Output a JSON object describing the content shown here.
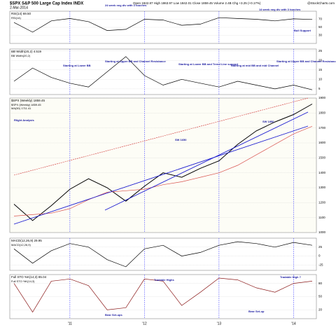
{
  "header": {
    "title": "$SPX S&P 500 Large Cap Index INDX",
    "date": "2-Mar-2014",
    "quote": "Open 1842.87 High 1863.97 Low 1842.01 Close 1859.45 Volume 2.4B Chg +3.25 (+0.17%)",
    "source": "@StockCharts.com"
  },
  "categories": [
    null,
    null,
    null,
    "'11",
    null,
    null,
    null,
    "'12",
    null,
    null,
    null,
    "'13",
    null,
    null,
    null,
    "'14",
    null
  ],
  "annotations": [
    "24 week neg div with 3 touches",
    "14 week neg div with 3 touches",
    "Bull Support",
    "Starting at Lower BB",
    "Starting at Upper BB and Channel Resistance",
    "Starting at Lower BB and Trend Line support",
    "Starting at mid BB and mid Channel",
    "Starting at Upper BB and Channel Resistance",
    "Rlight Analysis",
    "SW 1650",
    "SW 1850",
    "Tradable Highs",
    "Tradable High ?",
    "Bear Set-ups",
    "Bear Set-up"
  ],
  "chart_data": [
    {
      "type": "line",
      "title": "RSI(14) 69.50",
      "ylim": [
        10,
        90
      ],
      "yticks": [
        30,
        50,
        70
      ],
      "grid": true,
      "series": [
        {
          "name": "RSI(14)",
          "color": "#000000",
          "values": [
            62,
            38,
            66,
            72,
            64,
            42,
            45,
            70,
            68,
            55,
            58,
            74,
            72,
            70,
            66,
            71,
            69.5
          ]
        }
      ]
    },
    {
      "type": "line",
      "title": "BB Width(20,2) 4.519",
      "ylim": [
        2,
        26
      ],
      "yticks": [
        5,
        10,
        15,
        20,
        25
      ],
      "grid": true,
      "series": [
        {
          "name": "BB Width(20,2)",
          "color": "#000000",
          "values": [
            9,
            16,
            11,
            8,
            6,
            14,
            22,
            12,
            7,
            10,
            8,
            6,
            9,
            7,
            5,
            7,
            4.5
          ]
        }
      ]
    },
    {
      "type": "line",
      "title": "$SPX (Weekly) 1859.45",
      "ylim": [
        1000,
        1900
      ],
      "yticks": [
        1000,
        1100,
        1200,
        1300,
        1400,
        1500,
        1600,
        1700,
        1800,
        1900
      ],
      "grid": true,
      "series": [
        {
          "name": "$SPX (Weekly) 1859.45",
          "color": "#000000",
          "values": [
            1190,
            1080,
            1180,
            1290,
            1360,
            1300,
            1210,
            1310,
            1400,
            1370,
            1430,
            1480,
            1590,
            1680,
            1740,
            1790,
            1860
          ]
        },
        {
          "name": "MA(50) 1711.41",
          "color": "#d9534f",
          "values": [
            1110,
            1120,
            1130,
            1160,
            1220,
            1270,
            1280,
            1290,
            1320,
            1340,
            1370,
            1400,
            1450,
            1520,
            1590,
            1660,
            1711
          ]
        }
      ]
    },
    {
      "type": "line",
      "title": "MACD(12,26,9) 29.95",
      "ylim": [
        -40,
        50
      ],
      "yticks": [
        -25,
        0,
        25
      ],
      "grid": true,
      "series": [
        {
          "name": "MACD(12,26,9)",
          "color": "#000000",
          "values": [
            20,
            -20,
            15,
            35,
            25,
            -10,
            -30,
            20,
            30,
            0,
            10,
            30,
            40,
            35,
            25,
            38,
            30
          ]
        }
      ]
    },
    {
      "type": "line",
      "title": "Full STO %K(14,3) 85.04",
      "ylim": [
        0,
        100
      ],
      "yticks": [
        20,
        50,
        80
      ],
      "grid": true,
      "series": [
        {
          "name": "Full STO %K(14,3)",
          "color": "#8b1a1a",
          "values": [
            80,
            15,
            85,
            90,
            75,
            20,
            25,
            90,
            85,
            30,
            60,
            92,
            88,
            70,
            60,
            80,
            85
          ]
        }
      ]
    }
  ]
}
